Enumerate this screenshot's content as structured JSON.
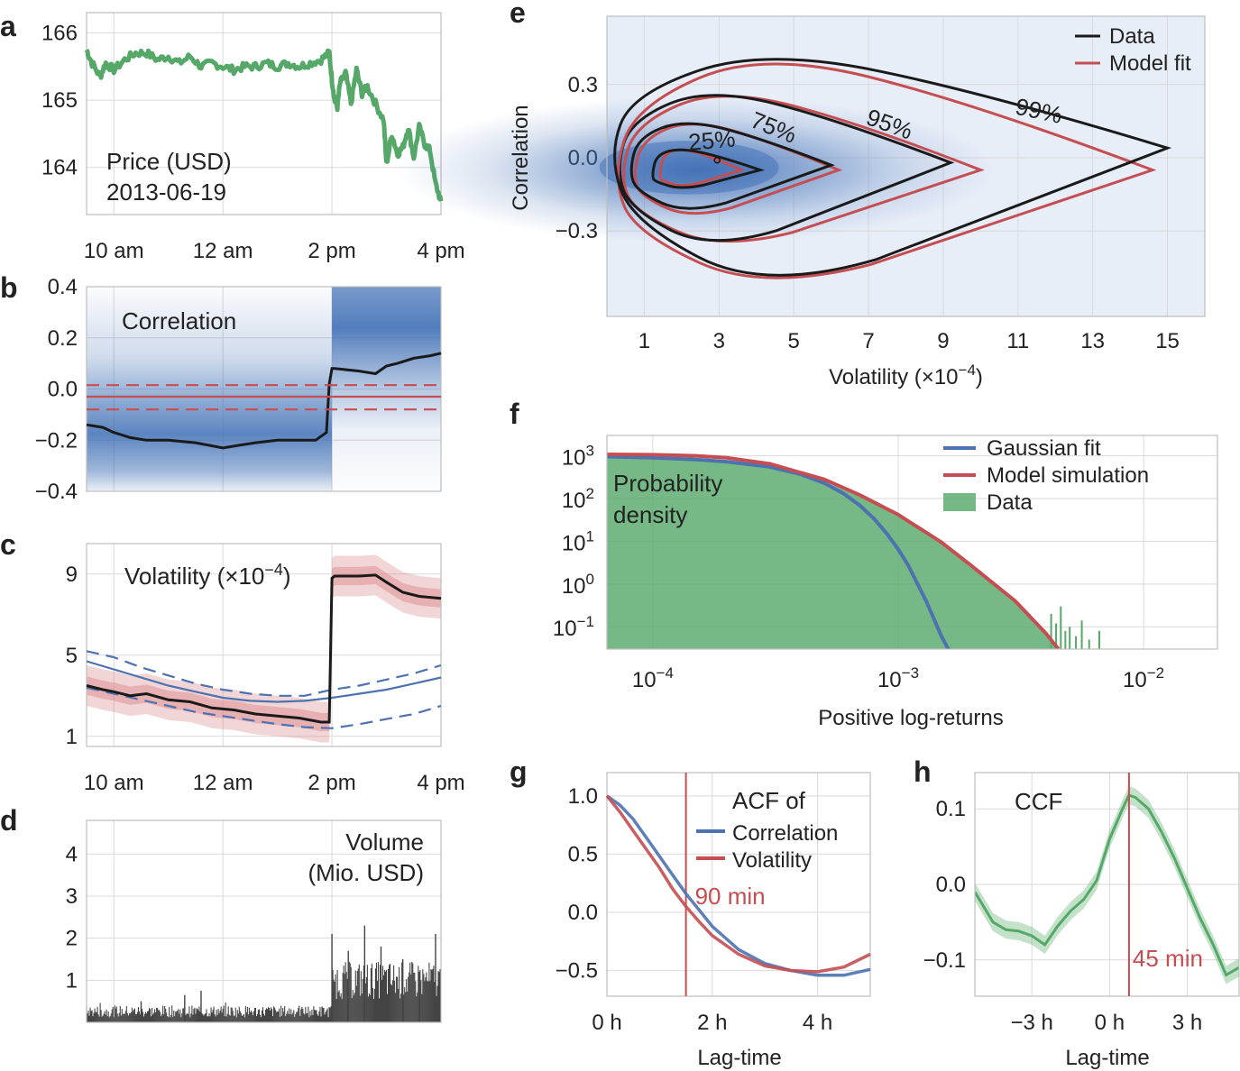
{
  "panel_labels": [
    "a",
    "b",
    "c",
    "d",
    "e",
    "f",
    "g",
    "h"
  ],
  "colors": {
    "green": "#55a868",
    "red": "#c44e52",
    "blue": "#4c72b0",
    "black": "#1a1a1a",
    "gray": "#444444",
    "blueFill": "#3f6fb5",
    "redFill": "#d9868a",
    "greenFill": "#6db57c"
  },
  "chart_data": [
    {
      "id": "a",
      "type": "line",
      "annotation": [
        "Price (USD)",
        "2013-06-19"
      ],
      "x_tick_labels": [
        "10 am",
        "12 am",
        "2 pm",
        "4 pm"
      ],
      "x_ticks_hours": [
        10,
        12,
        14,
        16
      ],
      "xlim": [
        9.5,
        16
      ],
      "yticks": [
        164,
        165,
        166
      ],
      "ylim": [
        163.3,
        166.3
      ],
      "series": [
        {
          "name": "Price",
          "color": "green",
          "x": [
            9.5,
            9.6,
            9.75,
            9.85,
            10.0,
            10.2,
            10.4,
            10.6,
            10.8,
            11.0,
            11.2,
            11.4,
            11.6,
            11.8,
            12.0,
            12.2,
            12.4,
            12.6,
            12.8,
            13.0,
            13.2,
            13.4,
            13.6,
            13.8,
            13.95,
            14.0,
            14.05,
            14.1,
            14.15,
            14.25,
            14.35,
            14.45,
            14.55,
            14.65,
            14.8,
            14.95,
            15.0,
            15.1,
            15.2,
            15.3,
            15.4,
            15.5,
            15.6,
            15.7,
            15.8,
            15.9,
            16.0
          ],
          "y": [
            165.75,
            165.55,
            165.35,
            165.55,
            165.45,
            165.6,
            165.7,
            165.7,
            165.6,
            165.65,
            165.55,
            165.65,
            165.5,
            165.55,
            165.5,
            165.45,
            165.5,
            165.5,
            165.55,
            165.5,
            165.55,
            165.5,
            165.55,
            165.6,
            165.7,
            165.3,
            165.0,
            164.9,
            165.25,
            165.4,
            164.95,
            165.45,
            165.1,
            165.2,
            164.95,
            164.7,
            164.05,
            164.5,
            164.2,
            164.3,
            164.6,
            164.15,
            164.6,
            164.35,
            164.25,
            163.75,
            163.5
          ]
        }
      ]
    },
    {
      "id": "b",
      "type": "line",
      "annotation": "Correlation",
      "x_ticks_hours": [
        10,
        12,
        14,
        16
      ],
      "xlim": [
        9.5,
        16
      ],
      "yticks": [
        -0.4,
        -0.2,
        0.0,
        0.2,
        0.4
      ],
      "ytick_labels": [
        "−0.4",
        "−0.2",
        "0.0",
        "0.2",
        "0.4"
      ],
      "ylim": [
        -0.4,
        0.4
      ],
      "series": [
        {
          "name": "Data",
          "color": "black",
          "x": [
            9.5,
            9.8,
            10.0,
            10.3,
            10.6,
            11.0,
            11.5,
            12.0,
            12.3,
            12.6,
            13.0,
            13.4,
            13.7,
            13.9,
            13.95,
            14.0,
            14.05,
            14.5,
            14.8,
            15.0,
            15.2,
            15.5,
            15.8,
            16.0
          ],
          "y": [
            -0.14,
            -0.15,
            -0.17,
            -0.19,
            -0.2,
            -0.2,
            -0.21,
            -0.23,
            -0.22,
            -0.21,
            -0.2,
            -0.2,
            -0.2,
            -0.17,
            0.02,
            0.08,
            0.08,
            0.07,
            0.06,
            0.09,
            0.1,
            0.12,
            0.13,
            0.14
          ]
        },
        {
          "name": "Model fit",
          "color": "red",
          "x": [
            9.5,
            16.0
          ],
          "y": [
            -0.03,
            -0.03
          ]
        },
        {
          "name": "Model fit upper",
          "color": "red",
          "dashed": true,
          "x": [
            9.5,
            16.0
          ],
          "y": [
            0.015,
            0.015
          ]
        },
        {
          "name": "Model fit lower",
          "color": "red",
          "dashed": true,
          "x": [
            9.5,
            16.0
          ],
          "y": [
            -0.08,
            -0.08
          ]
        }
      ]
    },
    {
      "id": "c",
      "type": "line",
      "annotation": "Volatility (×10",
      "annotation_exp": "−4",
      "annotation_end": ")",
      "x_tick_labels": [
        "10 am",
        "12 am",
        "2 pm",
        "4 pm"
      ],
      "x_ticks_hours": [
        10,
        12,
        14,
        16
      ],
      "xlim": [
        9.5,
        16
      ],
      "yticks": [
        1,
        5,
        9
      ],
      "ylim": [
        0.5,
        10.5
      ],
      "series": [
        {
          "name": "Data",
          "color": "black",
          "x": [
            9.5,
            9.8,
            10.0,
            10.3,
            10.6,
            11.0,
            11.4,
            11.8,
            12.2,
            12.6,
            13.0,
            13.4,
            13.8,
            13.95,
            14.0,
            14.05,
            14.5,
            14.8,
            15.0,
            15.3,
            15.6,
            16.0
          ],
          "y": [
            3.5,
            3.3,
            3.2,
            3.0,
            3.1,
            2.8,
            2.7,
            2.4,
            2.3,
            2.1,
            2.0,
            1.9,
            1.7,
            1.7,
            8.8,
            8.9,
            8.9,
            8.95,
            8.6,
            8.1,
            7.9,
            7.8
          ]
        },
        {
          "name": "Model",
          "color": "blue",
          "x": [
            9.5,
            10.0,
            10.5,
            11.0,
            11.5,
            12.0,
            12.5,
            13.0,
            13.5,
            14.0,
            14.5,
            15.0,
            15.5,
            16.0
          ],
          "y": [
            4.7,
            4.3,
            3.9,
            3.5,
            3.2,
            2.9,
            2.75,
            2.7,
            2.75,
            2.9,
            3.1,
            3.3,
            3.6,
            3.9
          ]
        },
        {
          "name": "Model upper",
          "color": "blue",
          "dashed": true,
          "x": [
            9.5,
            10.0,
            10.5,
            11.0,
            11.5,
            12.0,
            12.5,
            13.0,
            13.5,
            14.0,
            14.5,
            15.0,
            15.5,
            16.0
          ],
          "y": [
            5.2,
            4.9,
            4.4,
            4.0,
            3.6,
            3.3,
            3.1,
            3.0,
            3.0,
            3.3,
            3.5,
            3.8,
            4.1,
            4.5
          ]
        },
        {
          "name": "Model lower",
          "color": "blue",
          "dashed": true,
          "x": [
            9.5,
            10.0,
            10.5,
            11.0,
            11.5,
            12.0,
            12.5,
            13.0,
            13.5,
            14.0,
            14.5,
            15.0,
            15.5,
            16.0
          ],
          "y": [
            3.4,
            3.1,
            2.8,
            2.5,
            2.2,
            2.0,
            1.8,
            1.6,
            1.45,
            1.4,
            1.6,
            1.85,
            2.1,
            2.5
          ]
        }
      ]
    },
    {
      "id": "d",
      "type": "bar",
      "annotation": [
        "Volume",
        "(Mio. USD)"
      ],
      "x_ticks_hours": [
        10,
        12,
        14,
        16
      ],
      "xlim": [
        9.5,
        16
      ],
      "yticks": [
        1,
        2,
        3,
        4
      ],
      "ylim": [
        0,
        4.8
      ],
      "highlights": [
        {
          "x": 11.6,
          "y": 0.75
        },
        {
          "x": 11.3,
          "y": 0.65
        },
        {
          "x": 10.5,
          "y": 0.5
        },
        {
          "x": 14.0,
          "y": 2.1
        },
        {
          "x": 14.3,
          "y": 1.7
        },
        {
          "x": 14.6,
          "y": 2.3
        },
        {
          "x": 14.9,
          "y": 1.8
        },
        {
          "x": 15.3,
          "y": 1.5
        },
        {
          "x": 15.9,
          "y": 2.1
        },
        {
          "x": 15.6,
          "y": 1.2
        }
      ]
    },
    {
      "id": "e",
      "type": "contour",
      "xlabel": "Volatility (×10",
      "xlabel_exp": "−4",
      "xlabel_end": ")",
      "ylabel": "Correlation",
      "xticks": [
        1,
        3,
        5,
        7,
        9,
        11,
        13,
        15
      ],
      "yticks": [
        -0.3,
        0.0,
        0.3
      ],
      "ytick_labels": [
        "−0.3",
        "0.0",
        "0.3"
      ],
      "xlim": [
        0,
        16
      ],
      "ylim": [
        -0.65,
        0.58
      ],
      "legend": [
        {
          "label": "Data",
          "color": "black"
        },
        {
          "label": "Model fit",
          "color": "red"
        }
      ],
      "contour_labels": [
        {
          "text": "25%",
          "x": 2.2,
          "y": 0.03
        },
        {
          "text": "75%",
          "x": 3.8,
          "y": 0.13
        },
        {
          "text": "95%",
          "x": 6.9,
          "y": 0.14
        },
        {
          "text": "99%",
          "x": 10.9,
          "y": 0.18
        }
      ],
      "center_marker": {
        "x": 2.95,
        "y": -0.01
      },
      "levels": [
        {
          "name": "25%",
          "data": {
            "left": 1.2,
            "right": 4.1,
            "top": 0.04,
            "bottom": -0.13,
            "tip_y": -0.05
          },
          "model": {
            "left": 1.4,
            "right": 3.6,
            "top": 0.04,
            "bottom": -0.12,
            "tip_y": -0.05
          }
        },
        {
          "name": "75%",
          "data": {
            "left": 0.6,
            "right": 6.0,
            "top": 0.16,
            "bottom": -0.23,
            "tip_y": -0.03
          },
          "model": {
            "left": 0.7,
            "right": 6.2,
            "top": 0.16,
            "bottom": -0.25,
            "tip_y": -0.05
          }
        },
        {
          "name": "95%",
          "data": {
            "left": 0.25,
            "right": 9.2,
            "top": 0.29,
            "bottom": -0.38,
            "tip_y": -0.02
          },
          "model": {
            "left": 0.35,
            "right": 10.0,
            "top": 0.29,
            "bottom": -0.38,
            "tip_y": -0.05
          }
        },
        {
          "name": "99%",
          "data": {
            "left": 0.05,
            "right": 15.0,
            "top": 0.45,
            "bottom": -0.55,
            "tip_y": 0.04
          },
          "model": {
            "left": 0.15,
            "right": 14.6,
            "top": 0.44,
            "bottom": -0.55,
            "tip_y": -0.05
          }
        }
      ]
    },
    {
      "id": "f",
      "type": "area",
      "xlabel": "Positive log-returns",
      "annotation": [
        "Probability",
        "density"
      ],
      "xscale": "log",
      "yscale": "log",
      "xticks_exp": [
        "−4",
        "−3",
        "−2"
      ],
      "xtick_values": [
        0.0001,
        0.001,
        0.01
      ],
      "yticks_exp": [
        "−1",
        "0",
        "1",
        "2",
        "3"
      ],
      "ytick_values": [
        0.1,
        1,
        10,
        100,
        1000
      ],
      "xlim": [
        6.5e-05,
        0.02
      ],
      "ylim": [
        0.03,
        3000
      ],
      "legend": [
        {
          "label": "Gaussian fit",
          "color": "blue",
          "kind": "line"
        },
        {
          "label": "Model simulation",
          "color": "red",
          "kind": "line"
        },
        {
          "label": "Data",
          "color": "green",
          "kind": "patch"
        }
      ],
      "series": [
        {
          "name": "Data",
          "color": "green",
          "x": [
            6.5e-05,
            0.0001,
            0.00015,
            0.0002,
            0.0003,
            0.0005,
            0.0007,
            0.001,
            0.0015,
            0.002,
            0.003,
            0.004,
            0.0045
          ],
          "y": [
            1000,
            950,
            880,
            780,
            560,
            250,
            110,
            40,
            9,
            2.5,
            0.4,
            0.08,
            0.03
          ]
        },
        {
          "name": "Model simulation",
          "color": "red",
          "x": [
            6.5e-05,
            0.0001,
            0.00015,
            0.0002,
            0.0003,
            0.0005,
            0.0007,
            0.001,
            0.0015,
            0.002,
            0.003,
            0.004,
            0.0045
          ],
          "y": [
            1080,
            1060,
            1000,
            900,
            650,
            280,
            120,
            42,
            9.5,
            2.6,
            0.4,
            0.07,
            0.03
          ]
        },
        {
          "name": "Gaussian fit",
          "color": "blue",
          "x": [
            6.5e-05,
            0.0001,
            0.00015,
            0.0002,
            0.0003,
            0.0004,
            0.0005,
            0.0006,
            0.0007,
            0.0008,
            0.0009,
            0.001,
            0.0011,
            0.0012,
            0.0013,
            0.0014,
            0.0015,
            0.0016,
            0.0017
          ],
          "y": [
            960,
            900,
            820,
            730,
            550,
            370,
            230,
            130,
            68,
            33,
            15,
            6.5,
            2.7,
            1.0,
            0.4,
            0.15,
            0.06,
            0.03,
            0.01
          ]
        }
      ]
    },
    {
      "id": "g",
      "type": "line",
      "xlabel": "Lag-time",
      "legend_title": "ACF of",
      "legend": [
        {
          "label": "Correlation",
          "color": "blue"
        },
        {
          "label": "Volatility",
          "color": "red"
        }
      ],
      "xticks": [
        0,
        2,
        4
      ],
      "x_tick_labels": [
        "0 h",
        "2 h",
        "4 h"
      ],
      "yticks": [
        -0.5,
        0.0,
        0.5,
        1.0
      ],
      "ytick_labels": [
        "−0.5",
        "0.0",
        "0.5",
        "1.0"
      ],
      "xlim": [
        0,
        5
      ],
      "ylim": [
        -0.72,
        1.2
      ],
      "vline": {
        "x": 1.5,
        "label": "90 min"
      },
      "series": [
        {
          "name": "Correlation",
          "color": "blue",
          "x": [
            0,
            0.25,
            0.5,
            0.75,
            1.0,
            1.25,
            1.5,
            1.75,
            2.0,
            2.5,
            3.0,
            3.5,
            4.0,
            4.5,
            5.0
          ],
          "y": [
            1.0,
            0.92,
            0.8,
            0.64,
            0.48,
            0.32,
            0.16,
            0.02,
            -0.12,
            -0.32,
            -0.44,
            -0.5,
            -0.54,
            -0.54,
            -0.49
          ]
        },
        {
          "name": "Volatility",
          "color": "red",
          "x": [
            0,
            0.25,
            0.5,
            0.75,
            1.0,
            1.25,
            1.5,
            1.75,
            2.0,
            2.5,
            3.0,
            3.5,
            4.0,
            4.5,
            5.0
          ],
          "y": [
            1.0,
            0.86,
            0.7,
            0.54,
            0.38,
            0.2,
            0.05,
            -0.08,
            -0.2,
            -0.36,
            -0.46,
            -0.5,
            -0.51,
            -0.47,
            -0.36
          ]
        }
      ]
    },
    {
      "id": "h",
      "type": "line",
      "xlabel": "Lag-time",
      "annotation": "CCF",
      "xticks": [
        -3,
        0,
        3
      ],
      "x_tick_labels": [
        "−3 h",
        "0 h",
        "3 h"
      ],
      "yticks": [
        -0.1,
        0.0,
        0.1
      ],
      "ytick_labels": [
        "−0.1",
        "0.0",
        "0.1"
      ],
      "xlim": [
        -5.2,
        5
      ],
      "ylim": [
        -0.148,
        0.148
      ],
      "vline": {
        "x": 0.75,
        "label": "45 min"
      },
      "series": [
        {
          "name": "CCF",
          "color": "green",
          "x": [
            -5.2,
            -4.5,
            -4.0,
            -3.5,
            -3.0,
            -2.5,
            -2.0,
            -1.5,
            -1.0,
            -0.5,
            0.0,
            0.5,
            0.75,
            1.0,
            1.5,
            2.0,
            2.5,
            3.0,
            3.5,
            4.0,
            4.5,
            5.0
          ],
          "y": [
            -0.01,
            -0.05,
            -0.06,
            -0.062,
            -0.068,
            -0.08,
            -0.055,
            -0.035,
            -0.02,
            0.005,
            0.06,
            0.1,
            0.118,
            0.115,
            0.1,
            0.07,
            0.035,
            -0.005,
            -0.045,
            -0.08,
            -0.12,
            -0.11
          ]
        }
      ]
    }
  ]
}
